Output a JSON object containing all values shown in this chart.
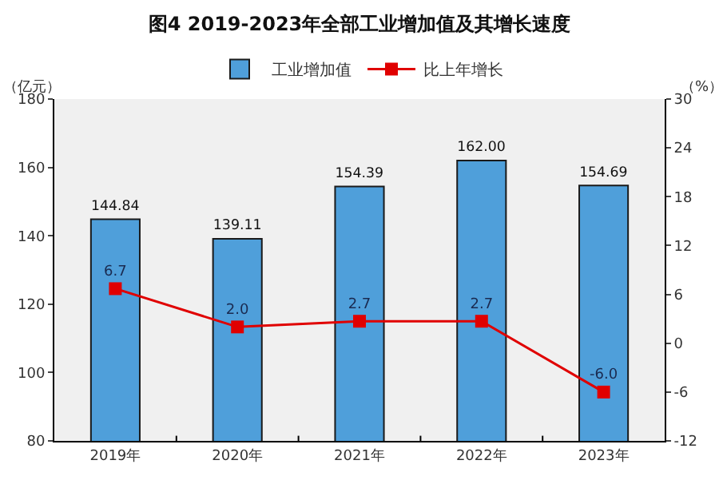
{
  "chart_data": {
    "type": "bar",
    "title": "图4 2019-2023年全部工业增加值及其增长速度",
    "categories": [
      "2019年",
      "2020年",
      "2021年",
      "2022年",
      "2023年"
    ],
    "series": [
      {
        "name": "工业增加值",
        "color": "#4f9fda",
        "values": [
          144.84,
          139.11,
          154.39,
          162.0,
          154.69
        ],
        "value_labels": [
          "144.84",
          "139.11",
          "154.39",
          "162.00",
          "154.69"
        ]
      },
      {
        "name": "比上年增长",
        "type": "line",
        "axis": "y2",
        "color": "#e00000",
        "marker": "square",
        "values": [
          6.7,
          2.0,
          2.7,
          2.7,
          -6.0
        ],
        "value_labels": [
          "6.7",
          "2.0",
          "2.7",
          "2.7",
          "-6.0"
        ]
      }
    ],
    "ylabel": "（亿元）",
    "y2label": "（%）",
    "ylim": [
      80,
      180
    ],
    "yticks": [
      80,
      100,
      120,
      140,
      160,
      180
    ],
    "y2lim": [
      -12,
      30
    ],
    "y2ticks": [
      -12,
      -6,
      0,
      6,
      12,
      18,
      24,
      30
    ],
    "grid": false,
    "legend": "top"
  }
}
